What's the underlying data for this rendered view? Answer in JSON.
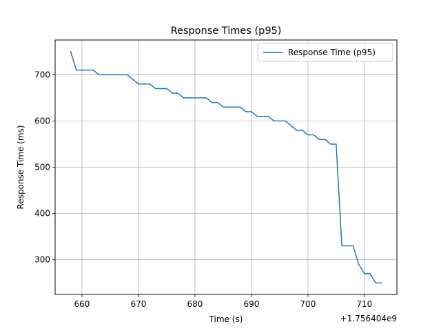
{
  "chart_data": {
    "type": "line",
    "title": "Response Times (p95)",
    "xlabel": "Time (s)",
    "ylabel": "Response Time (ms)",
    "x_offset_label": "+1.756404e9",
    "xlim": [
      655.25,
      715.75
    ],
    "ylim": [
      225,
      775
    ],
    "xticks": [
      660,
      670,
      680,
      690,
      700,
      710
    ],
    "yticks": [
      300,
      400,
      500,
      600,
      700
    ],
    "grid": true,
    "legend_position": "top-right",
    "series": [
      {
        "name": "Response Time (p95)",
        "color": "#1f77b4",
        "x": [
          658,
          659,
          660,
          661,
          662,
          663,
          664,
          665,
          666,
          667,
          668,
          669,
          670,
          671,
          672,
          673,
          674,
          675,
          676,
          677,
          678,
          679,
          680,
          681,
          682,
          683,
          684,
          685,
          686,
          687,
          688,
          689,
          690,
          691,
          692,
          693,
          694,
          695,
          696,
          697,
          698,
          699,
          700,
          701,
          702,
          703,
          704,
          705,
          706,
          707,
          708,
          709,
          710,
          711,
          712,
          713
        ],
        "y": [
          750,
          710,
          710,
          710,
          710,
          700,
          700,
          700,
          700,
          700,
          700,
          690,
          680,
          680,
          680,
          670,
          670,
          670,
          660,
          660,
          650,
          650,
          650,
          650,
          650,
          640,
          640,
          630,
          630,
          630,
          630,
          620,
          620,
          610,
          610,
          610,
          600,
          600,
          600,
          590,
          580,
          580,
          570,
          570,
          560,
          560,
          550,
          550,
          330,
          330,
          330,
          290,
          270,
          270,
          250,
          250
        ]
      }
    ]
  }
}
